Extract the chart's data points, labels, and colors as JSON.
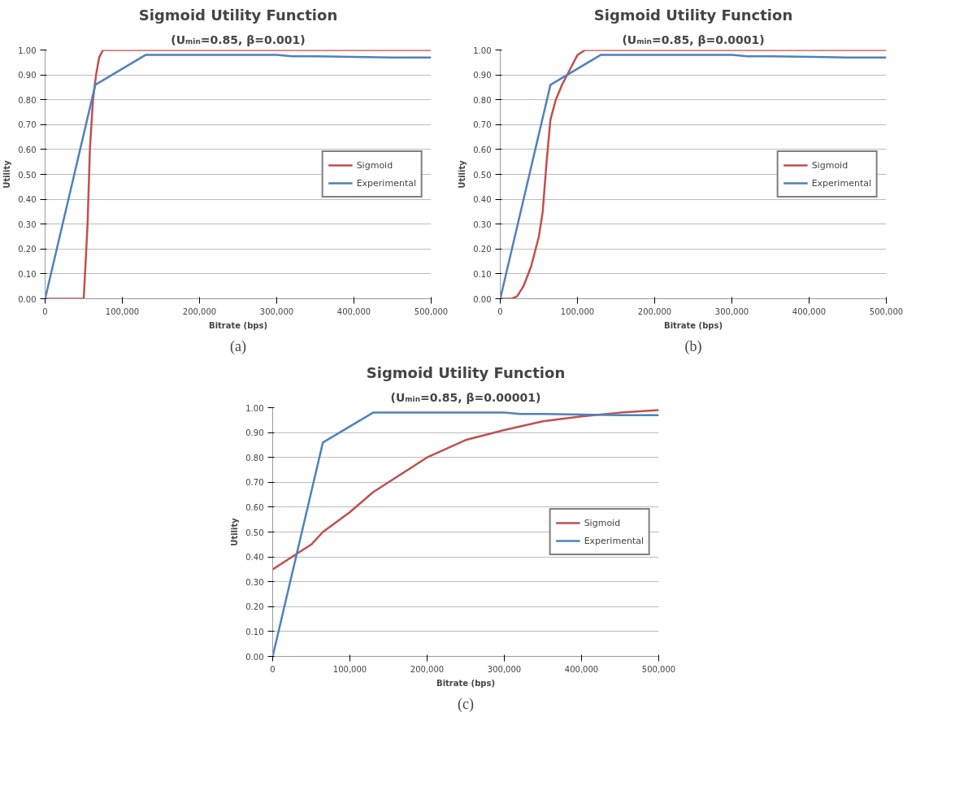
{
  "chart_data": [
    {
      "type": "line",
      "title": "Sigmoid Utility Function",
      "subtitle": "(Uₘᵢₙ=0.85, β=0.001)",
      "xlabel": "Bitrate (bps)",
      "ylabel": "Utility",
      "annotations": [
        "(a)"
      ],
      "xlim": [
        0,
        500000
      ],
      "xticks": [
        {
          "value": 0,
          "label": "0"
        },
        {
          "value": 100000,
          "label": "100,000"
        },
        {
          "value": 200000,
          "label": "200,000"
        },
        {
          "value": 300000,
          "label": "300,000"
        },
        {
          "value": 400000,
          "label": "400,000"
        },
        {
          "value": 500000,
          "label": "500,000"
        }
      ],
      "ylim": [
        0,
        1
      ],
      "yticks": [
        {
          "value": 0,
          "label": "0.00"
        },
        {
          "value": 0.1,
          "label": "0.10"
        },
        {
          "value": 0.2,
          "label": "0.20"
        },
        {
          "value": 0.3,
          "label": "0.30"
        },
        {
          "value": 0.4,
          "label": "0.40"
        },
        {
          "value": 0.5,
          "label": "0.50"
        },
        {
          "value": 0.6,
          "label": "0.60"
        },
        {
          "value": 0.7,
          "label": "0.70"
        },
        {
          "value": 0.8,
          "label": "0.80"
        },
        {
          "value": 0.9,
          "label": "0.90"
        },
        {
          "value": 1,
          "label": "1.00"
        }
      ],
      "grid": "y",
      "legend": "right",
      "marker": "none",
      "line_style": "solid",
      "series": [
        {
          "name": "Sigmoid",
          "color": "#c0504d",
          "x": [
            0,
            28000,
            50000,
            55000,
            58000,
            62000,
            66000,
            70000,
            75000,
            500000
          ],
          "values": [
            0,
            0,
            0,
            0.3,
            0.6,
            0.8,
            0.9,
            0.97,
            1.0,
            1.0
          ]
        },
        {
          "name": "Experimental",
          "color": "#4f81bd",
          "x": [
            0,
            65000,
            130000,
            300000,
            320000,
            350000,
            450000,
            500000
          ],
          "values": [
            0,
            0.86,
            0.98,
            0.98,
            0.975,
            0.975,
            0.97,
            0.97
          ]
        }
      ]
    },
    {
      "type": "line",
      "title": "Sigmoid Utility Function",
      "subtitle": "(Uₘᵢₙ=0.85, β=0.0001)",
      "xlabel": "Bitrate (bps)",
      "ylabel": "Utility",
      "annotations": [
        "(b)"
      ],
      "xlim": [
        0,
        500000
      ],
      "xticks": [
        {
          "value": 0,
          "label": "0"
        },
        {
          "value": 100000,
          "label": "100,000"
        },
        {
          "value": 200000,
          "label": "200,000"
        },
        {
          "value": 300000,
          "label": "300,000"
        },
        {
          "value": 400000,
          "label": "400,000"
        },
        {
          "value": 500000,
          "label": "500,000"
        }
      ],
      "ylim": [
        0,
        1
      ],
      "yticks": [
        {
          "value": 0,
          "label": "0.00"
        },
        {
          "value": 0.1,
          "label": "0.10"
        },
        {
          "value": 0.2,
          "label": "0.20"
        },
        {
          "value": 0.3,
          "label": "0.30"
        },
        {
          "value": 0.4,
          "label": "0.40"
        },
        {
          "value": 0.5,
          "label": "0.50"
        },
        {
          "value": 0.6,
          "label": "0.60"
        },
        {
          "value": 0.7,
          "label": "0.70"
        },
        {
          "value": 0.8,
          "label": "0.80"
        },
        {
          "value": 0.9,
          "label": "0.90"
        },
        {
          "value": 1,
          "label": "1.00"
        }
      ],
      "grid": "y",
      "legend": "right",
      "marker": "none",
      "line_style": "solid",
      "series": [
        {
          "name": "Sigmoid",
          "color": "#c0504d",
          "x": [
            0,
            15000,
            22000,
            30000,
            40000,
            50000,
            55000,
            60000,
            65000,
            72000,
            80000,
            90000,
            100000,
            110000,
            500000
          ],
          "values": [
            0,
            0,
            0.01,
            0.05,
            0.13,
            0.25,
            0.35,
            0.55,
            0.72,
            0.8,
            0.86,
            0.92,
            0.98,
            1.0,
            1.0
          ]
        },
        {
          "name": "Experimental",
          "color": "#4f81bd",
          "x": [
            0,
            65000,
            130000,
            300000,
            320000,
            350000,
            450000,
            500000
          ],
          "values": [
            0,
            0.86,
            0.98,
            0.98,
            0.975,
            0.975,
            0.97,
            0.97
          ]
        }
      ]
    },
    {
      "type": "line",
      "title": "Sigmoid Utility Function",
      "subtitle": "(Uₘᵢₙ=0.85, β=0.00001)",
      "xlabel": "Bitrate (bps)",
      "ylabel": "Utility",
      "annotations": [
        "(c)"
      ],
      "xlim": [
        0,
        500000
      ],
      "xticks": [
        {
          "value": 0,
          "label": "0"
        },
        {
          "value": 100000,
          "label": "100,000"
        },
        {
          "value": 200000,
          "label": "200,000"
        },
        {
          "value": 300000,
          "label": "300,000"
        },
        {
          "value": 400000,
          "label": "400,000"
        },
        {
          "value": 500000,
          "label": "500,000"
        }
      ],
      "ylim": [
        0,
        1
      ],
      "yticks": [
        {
          "value": 0,
          "label": "0.00"
        },
        {
          "value": 0.1,
          "label": "0.10"
        },
        {
          "value": 0.2,
          "label": "0.20"
        },
        {
          "value": 0.3,
          "label": "0.30"
        },
        {
          "value": 0.4,
          "label": "0.40"
        },
        {
          "value": 0.5,
          "label": "0.50"
        },
        {
          "value": 0.6,
          "label": "0.60"
        },
        {
          "value": 0.7,
          "label": "0.70"
        },
        {
          "value": 0.8,
          "label": "0.80"
        },
        {
          "value": 0.9,
          "label": "0.90"
        },
        {
          "value": 1,
          "label": "1.00"
        }
      ],
      "grid": "y",
      "legend": "right",
      "marker": "none",
      "line_style": "solid",
      "series": [
        {
          "name": "Sigmoid",
          "color": "#c0504d",
          "x": [
            0,
            50000,
            65000,
            100000,
            130000,
            150000,
            200000,
            250000,
            300000,
            350000,
            400000,
            450000,
            500000
          ],
          "values": [
            0.35,
            0.45,
            0.5,
            0.58,
            0.66,
            0.7,
            0.8,
            0.87,
            0.91,
            0.945,
            0.965,
            0.98,
            0.99
          ]
        },
        {
          "name": "Experimental",
          "color": "#4f81bd",
          "x": [
            0,
            65000,
            130000,
            300000,
            320000,
            350000,
            450000,
            500000
          ],
          "values": [
            0,
            0.86,
            0.98,
            0.98,
            0.975,
            0.975,
            0.97,
            0.97
          ]
        }
      ]
    }
  ]
}
